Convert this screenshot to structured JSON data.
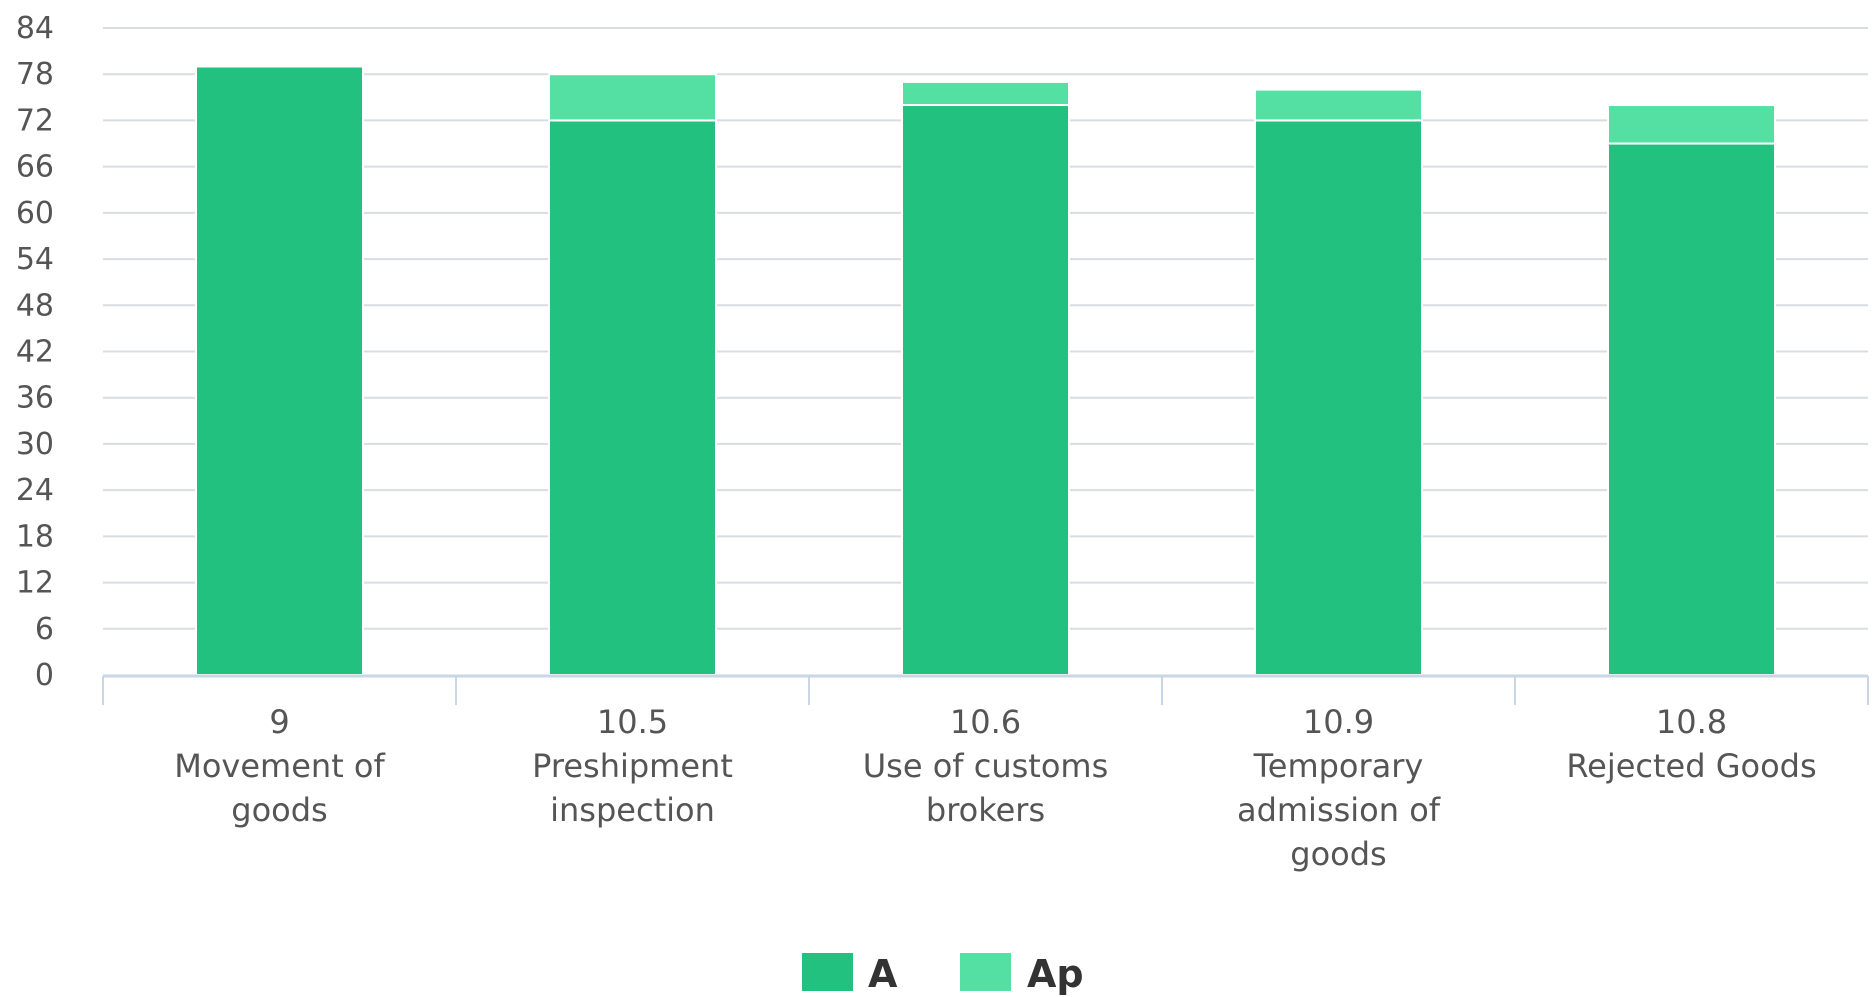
{
  "chart_data": {
    "type": "bar",
    "stacked": true,
    "title": "",
    "xlabel": "",
    "ylabel": "",
    "ylim": [
      0,
      84
    ],
    "yticks": [
      0,
      6,
      12,
      18,
      24,
      30,
      36,
      42,
      48,
      54,
      60,
      66,
      72,
      78,
      84
    ],
    "grid": true,
    "legend_position": "bottom-center",
    "categories": [
      {
        "code": "9",
        "label_lines": [
          "Movement of",
          "goods"
        ]
      },
      {
        "code": "10.5",
        "label_lines": [
          "Preshipment",
          "inspection"
        ]
      },
      {
        "code": "10.6",
        "label_lines": [
          "Use of customs",
          "brokers"
        ]
      },
      {
        "code": "10.9",
        "label_lines": [
          "Temporary",
          "admission of",
          "goods"
        ]
      },
      {
        "code": "10.8",
        "label_lines": [
          "Rejected Goods"
        ]
      }
    ],
    "series": [
      {
        "name": "A",
        "color": "#22c17f",
        "values": [
          79,
          72,
          74,
          72,
          69
        ]
      },
      {
        "name": "Ap",
        "color": "#54dfa3",
        "values": [
          0,
          6,
          3,
          4,
          5
        ]
      }
    ]
  },
  "colors": {
    "grid": "#d8dde3",
    "axis": "#c9d6e5",
    "text": "#555555"
  }
}
